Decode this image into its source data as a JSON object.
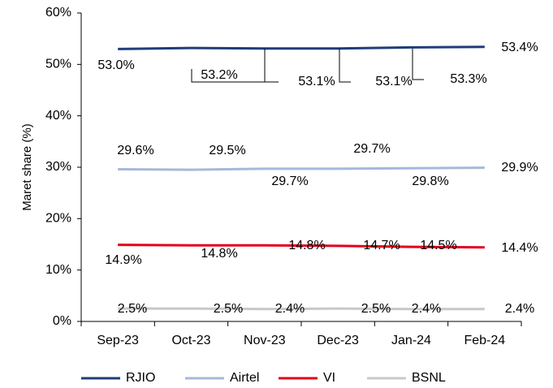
{
  "chart_data": {
    "type": "line",
    "y_label": "Maret share (%)",
    "categories": [
      "Sep-23",
      "Oct-23",
      "Nov-23",
      "Dec-23",
      "Jan-24",
      "Feb-24"
    ],
    "series": [
      {
        "name": "RJIO",
        "color": "#1f3d7a",
        "values": [
          53.0,
          53.2,
          53.1,
          53.1,
          53.3,
          53.4
        ],
        "value_labels": [
          "53.0%",
          "53.2%",
          "53.1%",
          "53.1%",
          "53.3%",
          "53.4%"
        ]
      },
      {
        "name": "Airtel",
        "color": "#a6b8db",
        "values": [
          29.6,
          29.5,
          29.7,
          29.7,
          29.8,
          29.9
        ],
        "value_labels": [
          "29.6%",
          "29.5%",
          "29.7%",
          "29.7%",
          "29.8%",
          "29.9%"
        ]
      },
      {
        "name": "VI",
        "color": "#e3001b",
        "values": [
          14.9,
          14.8,
          14.8,
          14.7,
          14.5,
          14.4
        ],
        "value_labels": [
          "14.9%",
          "14.8%",
          "14.8%",
          "14.7%",
          "14.5%",
          "14.4%"
        ]
      },
      {
        "name": "BSNL",
        "color": "#c8c8c8",
        "values": [
          2.5,
          2.5,
          2.4,
          2.5,
          2.4,
          2.4
        ],
        "value_labels": [
          "2.5%",
          "2.5%",
          "2.4%",
          "2.5%",
          "2.4%",
          "2.4%"
        ]
      }
    ],
    "ylim": [
      0,
      60
    ],
    "yticks": [
      {
        "value": 0,
        "label": "0%"
      },
      {
        "value": 10,
        "label": "10%"
      },
      {
        "value": 20,
        "label": "20%"
      },
      {
        "value": 30,
        "label": "30%"
      },
      {
        "value": 40,
        "label": "40%"
      },
      {
        "value": 50,
        "label": "50%"
      },
      {
        "value": 60,
        "label": "60%"
      }
    ],
    "grid": false,
    "legend": "bottom"
  }
}
